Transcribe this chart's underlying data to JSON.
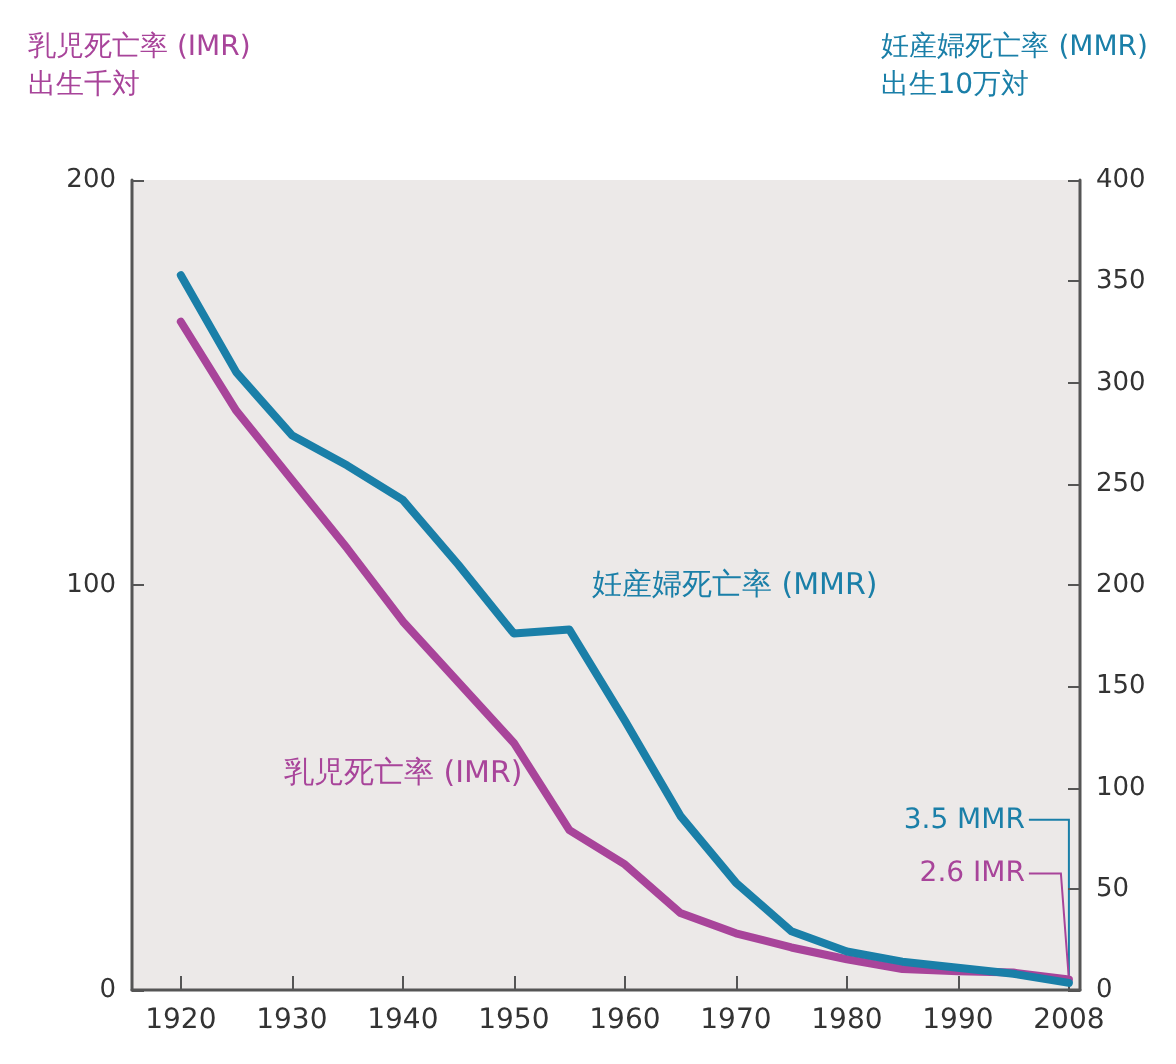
{
  "chart_data": {
    "type": "line",
    "ylabel": "乳児死亡率 (IMR)\n出生千対",
    "y2label": "妊産婦死亡率 (MMR)\n出生10万対",
    "categories": [
      "1920",
      null,
      "1930",
      null,
      "1940",
      null,
      "1950",
      null,
      "1960",
      null,
      "1970",
      null,
      "1980",
      null,
      "1990",
      null,
      "2008"
    ],
    "series": [
      {
        "color": "#a8449a",
        "values": [
          165,
          143,
          126,
          109,
          91,
          76,
          61,
          39.5,
          31,
          19,
          14,
          10.5,
          7.6,
          5.2,
          4.6,
          4.3,
          2.6
        ]
      },
      {
        "color": "#1a7fa8",
        "axis": "y2",
        "values": [
          353,
          305,
          274,
          259,
          242,
          210,
          176,
          178,
          133,
          86,
          53,
          29,
          19,
          14,
          11,
          8,
          3.5
        ]
      }
    ],
    "ylim": [
      0,
      200
    ],
    "yticks": [
      0,
      100,
      200
    ],
    "y2lim": [
      0,
      400
    ],
    "y2ticks": [
      0,
      50,
      100,
      150,
      200,
      250,
      300,
      350,
      400
    ],
    "grid": false,
    "annotations": [
      "妊産婦死亡率 (MMR)",
      "乳児死亡率 (IMR)",
      {
        "text": "3.5 MMR",
        "x": "2008",
        "y": 3.5
      },
      {
        "text": "2.6 IMR",
        "x": "2008",
        "y": 2.6
      }
    ]
  }
}
